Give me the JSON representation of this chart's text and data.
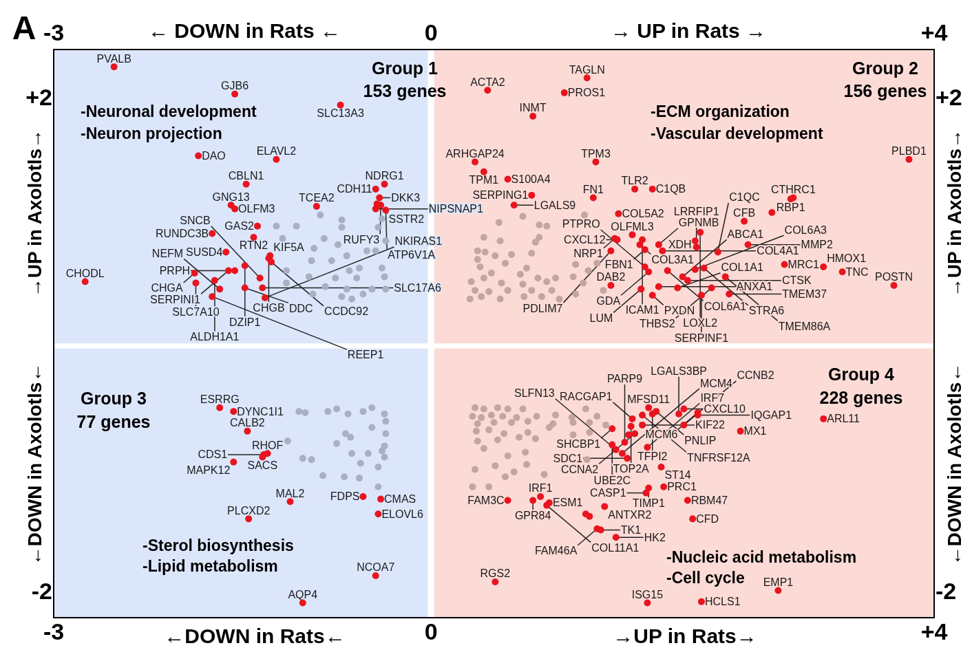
{
  "chart_data": {
    "type": "scatter",
    "xlim": [
      -3,
      4
    ],
    "xticks": [
      -3,
      0,
      {
        "value": 4,
        "label": "+4"
      }
    ],
    "x2lim": [
      -3,
      4
    ],
    "x2ticks": [
      -3,
      0,
      {
        "value": 4,
        "label": "+4"
      }
    ],
    "ylim": [
      -2.2,
      2.4
    ],
    "yticks": [
      -2,
      {
        "value": 2,
        "label": "+2"
      }
    ],
    "y2lim": [
      -2.2,
      2.4
    ],
    "y2ticks": [
      -2,
      {
        "value": 2,
        "label": "+2"
      }
    ],
    "grid": false,
    "legend": false,
    "marker": "circle",
    "bands": [
      {
        "axis": "x",
        "from": -3,
        "to": 0,
        "color": "#dce6fb"
      },
      {
        "axis": "x",
        "from": 0,
        "to": 4,
        "color": "#fcdbd6"
      },
      {
        "axis": "x",
        "from": -0.025,
        "to": 0.025,
        "color": "#ffffff"
      },
      {
        "axis": "y",
        "from": -0.02,
        "to": 0.02,
        "color": "#ffffff"
      }
    ],
    "series": [
      {
        "color": "#a8b0c3",
        "x": [
          -0.88,
          -0.71,
          -0.71,
          -0.85,
          -0.74,
          -0.42,
          -0.39,
          -0.36,
          -0.51,
          -0.44,
          -0.67,
          -0.79,
          -0.95,
          -1.07,
          -1.23,
          -1.18,
          -0.93,
          -1.15,
          -0.97,
          -0.84,
          -0.76,
          -0.65,
          -0.57,
          -0.39,
          -0.37,
          -0.47,
          -0.54,
          -0.63,
          -0.71,
          -0.36,
          -1.15,
          -0.94,
          -0.59,
          -0.67,
          -1.05,
          -1.0,
          -0.82,
          -0.75,
          -0.66,
          -0.54,
          -0.47,
          -0.37,
          -0.36,
          -0.47,
          -0.68,
          -0.64,
          -0.36,
          -1.14,
          -0.75,
          -0.37,
          -0.63,
          -0.5,
          -0.39,
          -0.37,
          -0.56,
          -0.42,
          -1.02,
          -0.95,
          -0.86,
          -0.69,
          -0.57,
          -0.42
        ],
        "values": [
          1.06,
          1.02,
          0.96,
          0.87,
          0.82,
          0.96,
          1.03,
          0.85,
          0.77,
          0.77,
          0.73,
          0.69,
          0.69,
          0.97,
          0.97,
          0.87,
          0.79,
          0.61,
          0.56,
          0.48,
          0.55,
          0.61,
          0.63,
          0.63,
          0.56,
          0.46,
          0.42,
          0.38,
          0.4,
          0.46,
          0.51,
          0.42,
          0.55,
          0.46,
          -0.53,
          -0.54,
          -0.53,
          -0.51,
          -0.55,
          -0.53,
          -0.5,
          -0.55,
          -0.61,
          -0.66,
          -0.71,
          -0.74,
          -0.71,
          -0.77,
          -0.79,
          -0.81,
          -0.87,
          -0.87,
          -0.85,
          -0.9,
          -0.95,
          -0.98,
          -0.91,
          -0.92,
          -1.05,
          -1.06,
          -1.07,
          -1.14
        ]
      },
      {
        "color": "#c4a5a0",
        "x": [
          0.73,
          1.22,
          0.54,
          0.86,
          0.92,
          0.42,
          0.55,
          0.86,
          0.83,
          0.37,
          0.43,
          0.51,
          0.64,
          0.8,
          0.37,
          0.59,
          0.76,
          1.15,
          1.32,
          1.25,
          0.39,
          0.48,
          0.71,
          0.85,
          0.99,
          1.13,
          0.32,
          0.42,
          0.56,
          0.73,
          0.92,
          1.21,
          0.35,
          0.46,
          0.61,
          0.8,
          0.96,
          1.15,
          0.31,
          0.4,
          0.55,
          0.74,
          0.88,
          1.02,
          1.37,
          0.35,
          0.42,
          0.53,
          0.61,
          0.73,
          1.23,
          0.33,
          0.4,
          0.48,
          0.57,
          0.68,
          0.84,
          0.99,
          1.12,
          1.32,
          0.37,
          0.5,
          0.64,
          0.77,
          0.97,
          1.13,
          1.26,
          1.39,
          0.36,
          0.46,
          0.58,
          0.77,
          0.94,
          1.26,
          0.37,
          0.53,
          0.7,
          0.83,
          1.13,
          0.42,
          0.61,
          0.75,
          1.24,
          0.35,
          0.51,
          0.66,
          0.76,
          0.59,
          0.33,
          0.46,
          0.9
        ],
        "values": [
          1.05,
          1.06,
          1.0,
          0.98,
          0.97,
          0.88,
          0.85,
          0.88,
          0.84,
          0.77,
          0.76,
          0.73,
          0.74,
          0.75,
          0.7,
          0.67,
          0.63,
          0.66,
          0.67,
          0.61,
          0.64,
          0.59,
          0.58,
          0.55,
          0.55,
          0.56,
          0.52,
          0.55,
          0.51,
          0.5,
          0.52,
          0.51,
          0.45,
          0.44,
          0.45,
          0.45,
          0.45,
          0.42,
          0.38,
          0.4,
          0.38,
          0.4,
          0.4,
          0.38,
          0.45,
          -0.5,
          -0.51,
          -0.5,
          -0.51,
          -0.51,
          -0.51,
          -0.57,
          -0.58,
          -0.56,
          -0.57,
          -0.58,
          -0.57,
          -0.56,
          -0.58,
          -0.57,
          -0.63,
          -0.62,
          -0.62,
          -0.61,
          -0.63,
          -0.62,
          -0.62,
          -0.64,
          -0.69,
          -0.68,
          -0.71,
          -0.7,
          -0.66,
          -0.7,
          -0.77,
          -0.76,
          -0.74,
          -0.75,
          -0.72,
          -0.83,
          -0.89,
          -0.86,
          -0.92,
          -1.0,
          -0.97,
          -1.02,
          -0.96,
          -1.06,
          -1.14,
          -1.14,
          -1.04
        ]
      },
      {
        "color": "#e8141f",
        "x": [
          -2.52,
          -1.56,
          -0.72,
          -1.85,
          -1.23,
          -1.47,
          -1.59,
          -1.56,
          -1.41,
          -0.91,
          -0.44,
          -0.37,
          -0.41,
          -0.43,
          -0.44,
          -0.4,
          -0.36,
          -1.38,
          -1.74,
          -1.63,
          -1.61,
          -1.28,
          -1.29,
          -1.27,
          -1.48,
          -1.56,
          -1.88,
          -1.72,
          -1.87,
          -2.75,
          -1.68,
          -1.74,
          -1.48,
          -1.36,
          -1.34,
          -1.32,
          1.24,
          0.45,
          1.06,
          0.81,
          0.35,
          1.31,
          0.42,
          0.61,
          0.8,
          0.66,
          1.29,
          1.49,
          1.62,
          1.76,
          1.6,
          1.66,
          1.48,
          1.46,
          1.68,
          1.81,
          1.7,
          1.84,
          1.7,
          1.43,
          1.73,
          1.67,
          1.43,
          1.76,
          1.88,
          1.81,
          2.0,
          2.04,
          1.96,
          3.8,
          2.14,
          2.1,
          2.88,
          2.86,
          2.49,
          2.71,
          2.52,
          2.11,
          2.28,
          2.17,
          2.1,
          2.34,
          2.23,
          2.37,
          2.15,
          2.81,
          3.12,
          3.27,
          3.68,
          -1.68,
          -1.57,
          -1.46,
          -1.34,
          -1.3,
          -1.33,
          -1.57,
          -1.12,
          -1.45,
          -0.54,
          -0.4,
          -0.42,
          -0.44,
          -1.02,
          1.73,
          1.79,
          1.76,
          1.6,
          1.68,
          1.68,
          1.59,
          1.44,
          1.62,
          1.57,
          1.44,
          1.54,
          1.72,
          1.52,
          1.47,
          1.56,
          1.83,
          1.85,
          1.73,
          1.71,
          0.87,
          0.81,
          0.61,
          0.94,
          0.92,
          1.38,
          1.23,
          1.26,
          1.32,
          1.35,
          1.47,
          0.51,
          1.72,
          2.01,
          1.97,
          2.12,
          2.12,
          2.01,
          2.46,
          3.12,
          2.04,
          2.08,
          2.76,
          2.15
        ],
        "values": [
          2.26,
          2.04,
          1.95,
          1.54,
          1.51,
          1.31,
          1.14,
          1.11,
          0.88,
          1.13,
          1.27,
          1.31,
          1.2,
          1.15,
          1.11,
          1.14,
          1.1,
          0.97,
          0.91,
          0.76,
          0.61,
          0.73,
          0.71,
          0.68,
          0.65,
          0.61,
          0.59,
          0.53,
          0.51,
          0.52,
          0.46,
          0.4,
          0.47,
          0.55,
          0.47,
          0.39,
          2.17,
          2.07,
          2.05,
          1.86,
          1.49,
          1.49,
          1.41,
          1.35,
          1.22,
          1.14,
          1.2,
          1.07,
          1.27,
          1.27,
          0.9,
          0.82,
          0.86,
          0.87,
          0.86,
          0.82,
          0.78,
          0.77,
          0.64,
          0.77,
          0.6,
          0.46,
          0.49,
          0.41,
          0.61,
          0.48,
          0.56,
          0.53,
          0.47,
          1.51,
          0.92,
          0.85,
          1.2,
          1.19,
          1.01,
          1.08,
          0.82,
          0.8,
          0.76,
          0.63,
          0.62,
          0.56,
          0.47,
          0.42,
          0.41,
          0.66,
          0.64,
          0.6,
          0.49,
          -0.5,
          -0.53,
          -0.69,
          -0.9,
          -0.87,
          -0.88,
          -0.94,
          -1.26,
          -1.4,
          -1.22,
          -1.24,
          -1.36,
          -1.86,
          -2.08,
          -0.5,
          -0.53,
          -0.55,
          -0.59,
          -0.56,
          -0.64,
          -0.65,
          -0.67,
          -0.71,
          -0.72,
          -0.8,
          -0.78,
          -0.82,
          -0.87,
          -0.84,
          -0.91,
          -0.98,
          -1.14,
          -1.15,
          -1.19,
          -1.22,
          -1.25,
          -1.25,
          -1.27,
          -1.29,
          -1.3,
          -1.36,
          -1.38,
          -1.48,
          -1.49,
          -1.55,
          -1.91,
          -2.08,
          -0.51,
          -0.55,
          -0.54,
          -0.56,
          -0.64,
          -0.69,
          -0.59,
          -1.25,
          -1.4,
          -1.98,
          -2.07
        ]
      }
    ],
    "annotations": [
      "A",
      "← DOWN in Rats ←",
      "→ UP in Rats →",
      "←DOWN in Rats←",
      "→UP in Rats→",
      "→UP in Axolotls→",
      "←DOWN in Axolotls←",
      "→UP in Axolotls→",
      "←DOWN in Axolotls←",
      "Group 1",
      "153 genes",
      "-Neuronal development",
      "-Neuron projection",
      "Group 2",
      "156 genes",
      "-ECM organization",
      "-Vascular development",
      "Group 3",
      "77 genes",
      "-Sterol biosynthesis",
      "-Lipid metabolism",
      "Group 4",
      "228 genes",
      "-Nucleic acid metabolism",
      "-Cell cycle",
      {
        "text": "PVALB",
        "x": -2.52,
        "y": 2.26
      },
      {
        "text": "GJB6",
        "x": -1.56,
        "y": 2.04
      },
      {
        "text": "SLC13A3",
        "x": -0.72,
        "y": 1.95
      },
      {
        "text": "DAO",
        "x": -1.85,
        "y": 1.54
      },
      {
        "text": "ELAVL2",
        "x": -1.23,
        "y": 1.51
      },
      {
        "text": "CBLN1",
        "x": -1.47,
        "y": 1.31
      },
      {
        "text": "GNG13",
        "x": -1.59,
        "y": 1.14
      },
      {
        "text": "OLFM3",
        "x": -1.56,
        "y": 1.11
      },
      {
        "text": "RTN2",
        "x": -1.41,
        "y": 0.88
      },
      {
        "text": "TCEA2",
        "x": -0.91,
        "y": 1.13
      },
      {
        "text": "CDH11",
        "x": -0.44,
        "y": 1.27
      },
      {
        "text": "NDRG1",
        "x": -0.37,
        "y": 1.31
      },
      {
        "text": "DKK3",
        "x": -0.41,
        "y": 1.2
      },
      {
        "text": "SSTR2",
        "x": -0.43,
        "y": 1.15
      },
      {
        "text": "NIPSNAP1",
        "x": -0.44,
        "y": 1.11
      },
      {
        "text": "RUFY3",
        "x": -0.4,
        "y": 1.14
      },
      {
        "text": "ATP6V1A",
        "x": -0.36,
        "y": 1.1
      },
      {
        "text": "GAS2",
        "x": -1.38,
        "y": 0.97
      },
      {
        "text": "RUNDC3B",
        "x": -1.74,
        "y": 0.91
      },
      {
        "text": "SUSD4",
        "x": -1.63,
        "y": 0.76
      },
      {
        "text": "SERPINI1",
        "x": -1.61,
        "y": 0.61
      },
      {
        "text": "KIF5A",
        "x": -1.28,
        "y": 0.73
      },
      {
        "text": "CHGB",
        "x": -1.29,
        "y": 0.71
      },
      {
        "text": "CCDC92",
        "x": -1.27,
        "y": 0.68
      },
      {
        "text": "DZIP1",
        "x": -1.48,
        "y": 0.65
      },
      {
        "text": "PRPH",
        "x": -1.56,
        "y": 0.61
      },
      {
        "text": "CHGA",
        "x": -1.88,
        "y": 0.59
      },
      {
        "text": "ALDH1A1",
        "x": -1.72,
        "y": 0.53
      },
      {
        "text": "SLC7A10",
        "x": -1.87,
        "y": 0.51
      },
      {
        "text": "CHODL",
        "x": -2.75,
        "y": 0.52
      },
      {
        "text": "NEFM",
        "x": -1.68,
        "y": 0.46
      },
      {
        "text": "REEP1",
        "x": -1.74,
        "y": 0.4
      },
      {
        "text": "DDC",
        "x": -1.48,
        "y": 0.47
      },
      {
        "text": "SNCB",
        "x": -1.36,
        "y": 0.55
      },
      {
        "text": "SLC17A6",
        "x": -1.34,
        "y": 0.47
      },
      {
        "text": "NKIRAS1",
        "x": -1.32,
        "y": 0.39
      },
      {
        "text": "TAGLN",
        "x": 1.24,
        "y": 2.17
      },
      {
        "text": "ACTA2",
        "x": 0.45,
        "y": 2.07
      },
      {
        "text": "PROS1",
        "x": 1.06,
        "y": 2.05
      },
      {
        "text": "INMT",
        "x": 0.81,
        "y": 1.86
      },
      {
        "text": "ARHGAP24",
        "x": 0.35,
        "y": 1.49
      },
      {
        "text": "TPM3",
        "x": 1.31,
        "y": 1.49
      },
      {
        "text": "TPM1",
        "x": 0.42,
        "y": 1.41
      },
      {
        "text": "S100A4",
        "x": 0.61,
        "y": 1.35
      },
      {
        "text": "SERPING1",
        "x": 0.8,
        "y": 1.22
      },
      {
        "text": "LGALS9",
        "x": 0.66,
        "y": 1.14
      },
      {
        "text": "FN1",
        "x": 1.29,
        "y": 1.2
      },
      {
        "text": "COL5A2",
        "x": 1.49,
        "y": 1.07
      },
      {
        "text": "TLR2",
        "x": 1.62,
        "y": 1.27
      },
      {
        "text": "C1QB",
        "x": 1.76,
        "y": 1.27
      },
      {
        "text": "OLFML3",
        "x": 1.6,
        "y": 0.9
      },
      {
        "text": "COL3A1",
        "x": 1.66,
        "y": 0.82
      },
      {
        "text": "CXCL12",
        "x": 1.48,
        "y": 0.86
      },
      {
        "text": "NRP1",
        "x": 1.46,
        "y": 0.87
      },
      {
        "text": "ICAM1",
        "x": 1.68,
        "y": 0.86
      },
      {
        "text": "GPNMB",
        "x": 1.81,
        "y": 0.82
      },
      {
        "text": "FBN1",
        "x": 1.7,
        "y": 0.78
      },
      {
        "text": "COL4A1",
        "x": 1.84,
        "y": 0.77
      },
      {
        "text": "PTPRO",
        "x": 1.7,
        "y": 0.64
      },
      {
        "text": "PDLIM7",
        "x": 1.43,
        "y": 0.77
      },
      {
        "text": "GDA",
        "x": 1.73,
        "y": 0.6
      },
      {
        "text": "LUM",
        "x": 1.67,
        "y": 0.46
      },
      {
        "text": "DAB2",
        "x": 1.43,
        "y": 0.49
      },
      {
        "text": "PXDN",
        "x": 1.76,
        "y": 0.41
      },
      {
        "text": "COL6A1",
        "x": 1.88,
        "y": 0.61
      },
      {
        "text": "ANXA1",
        "x": 1.81,
        "y": 0.48
      },
      {
        "text": "ABCA1",
        "x": 2.0,
        "y": 0.56
      },
      {
        "text": "CTSK",
        "x": 2.04,
        "y": 0.53
      },
      {
        "text": "COL1A1",
        "x": 1.96,
        "y": 0.47
      },
      {
        "text": "PLBD1",
        "x": 3.8,
        "y": 1.51
      },
      {
        "text": "LOXL2",
        "x": 2.14,
        "y": 0.92
      },
      {
        "text": "XDH",
        "x": 2.1,
        "y": 0.85
      },
      {
        "text": "CTHRC1",
        "x": 2.88,
        "y": 1.2
      },
      {
        "text": "RBP1",
        "x": 2.86,
        "y": 1.19
      },
      {
        "text": "CFB",
        "x": 2.49,
        "y": 1.01
      },
      {
        "text": "MMP2",
        "x": 2.52,
        "y": 0.82
      },
      {
        "text": "LRRFIP1",
        "x": 2.11,
        "y": 0.8
      },
      {
        "text": "C1QC",
        "x": 2.28,
        "y": 0.76
      },
      {
        "text": "STRA6",
        "x": 2.17,
        "y": 0.63
      },
      {
        "text": "COL6A3",
        "x": 2.1,
        "y": 0.62
      },
      {
        "text": "TMEM86A",
        "x": 2.34,
        "y": 0.56
      },
      {
        "text": "THBS2",
        "x": 2.23,
        "y": 0.47
      },
      {
        "text": "TMEM37",
        "x": 2.37,
        "y": 0.42
      },
      {
        "text": "SERPINF1",
        "x": 2.15,
        "y": 0.41
      },
      {
        "text": "MRC1",
        "x": 2.81,
        "y": 0.66
      },
      {
        "text": "HMOX1",
        "x": 3.12,
        "y": 0.64
      },
      {
        "text": "TNC",
        "x": 3.27,
        "y": 0.6
      },
      {
        "text": "POSTN",
        "x": 3.68,
        "y": 0.49
      },
      {
        "text": "ESRRG",
        "x": -1.68,
        "y": -0.5
      },
      {
        "text": "DYNC1I1",
        "x": -1.57,
        "y": -0.53
      },
      {
        "text": "CALB2",
        "x": -1.46,
        "y": -0.69
      },
      {
        "text": "SACS",
        "x": -1.34,
        "y": -0.9
      },
      {
        "text": "RHOF",
        "x": -1.3,
        "y": -0.87
      },
      {
        "text": "CDS1",
        "x": -1.33,
        "y": -0.88
      },
      {
        "text": "MAPK12",
        "x": -1.57,
        "y": -0.94
      },
      {
        "text": "MAL2",
        "x": -1.12,
        "y": -1.26
      },
      {
        "text": "PLCXD2",
        "x": -1.45,
        "y": -1.4
      },
      {
        "text": "FDPS",
        "x": -0.54,
        "y": -1.22
      },
      {
        "text": "CMAS",
        "x": -0.4,
        "y": -1.24
      },
      {
        "text": "ELOVL6",
        "x": -0.42,
        "y": -1.36
      },
      {
        "text": "NCOA7",
        "x": -0.44,
        "y": -1.86
      },
      {
        "text": "AQP4",
        "x": -1.02,
        "y": -2.08
      },
      {
        "text": "MFSD11",
        "x": 1.73,
        "y": -0.5
      },
      {
        "text": "PNLIP",
        "x": 1.79,
        "y": -0.53
      },
      {
        "text": "TFPI2",
        "x": 1.76,
        "y": -0.55
      },
      {
        "text": "RACGAP1",
        "x": 1.6,
        "y": -0.59
      },
      {
        "text": "TNFRSF12A",
        "x": 1.68,
        "y": -0.56
      },
      {
        "text": "KIF22",
        "x": 1.68,
        "y": -0.64
      },
      {
        "text": "TOP2A",
        "x": 1.59,
        "y": -0.65
      },
      {
        "text": "SHCBP1",
        "x": 1.44,
        "y": -0.67
      },
      {
        "text": "CCNA2",
        "x": 1.62,
        "y": -0.71
      },
      {
        "text": "UBE2C",
        "x": 1.44,
        "y": -0.8
      },
      {
        "text": "PARP9",
        "x": 1.54,
        "y": -0.78
      },
      {
        "text": "IRF7",
        "x": 1.72,
        "y": -0.82
      },
      {
        "text": "MCM4",
        "x": 1.52,
        "y": -0.87
      },
      {
        "text": "SLFN13",
        "x": 1.47,
        "y": -0.84
      },
      {
        "text": "SDC1",
        "x": 1.56,
        "y": -0.91
      },
      {
        "text": "ST14",
        "x": 1.83,
        "y": -0.98
      },
      {
        "text": "PRC1",
        "x": 1.85,
        "y": -1.14
      },
      {
        "text": "TIMP1",
        "x": 1.73,
        "y": -1.15
      },
      {
        "text": "CASP1",
        "x": 1.71,
        "y": -1.19
      },
      {
        "text": "IRF1",
        "x": 0.87,
        "y": -1.22
      },
      {
        "text": "GPR84",
        "x": 0.81,
        "y": -1.25
      },
      {
        "text": "FAM3C",
        "x": 0.61,
        "y": -1.25
      },
      {
        "text": "ESM1",
        "x": 0.94,
        "y": -1.27
      },
      {
        "text": "COL11A1",
        "x": 0.92,
        "y": -1.29
      },
      {
        "text": "ANTXR2",
        "x": 1.38,
        "y": -1.3
      },
      {
        "text": "FAM46A",
        "x": 1.32,
        "y": -1.48
      },
      {
        "text": "TK1",
        "x": 1.35,
        "y": -1.49
      },
      {
        "text": "HK2",
        "x": 1.47,
        "y": -1.55
      },
      {
        "text": "RGS2",
        "x": 0.51,
        "y": -1.91
      },
      {
        "text": "ISG15",
        "x": 1.72,
        "y": -2.08
      },
      {
        "text": "CXCL10",
        "x": 2.01,
        "y": -0.51
      },
      {
        "text": "LGALS3BP",
        "x": 1.97,
        "y": -0.55
      },
      {
        "text": "MCM6",
        "x": 2.12,
        "y": -0.54
      },
      {
        "text": "IQGAP1",
        "x": 2.12,
        "y": -0.56
      },
      {
        "text": "CCNB2",
        "x": 2.01,
        "y": -0.64
      },
      {
        "text": "MX1",
        "x": 2.46,
        "y": -0.69
      },
      {
        "text": "ARL11",
        "x": 3.12,
        "y": -0.59
      },
      {
        "text": "RBM47",
        "x": 2.04,
        "y": -1.25
      },
      {
        "text": "CFD",
        "x": 2.08,
        "y": -1.4
      },
      {
        "text": "EMP1",
        "x": 2.76,
        "y": -1.98
      },
      {
        "text": "HCLS1",
        "x": 2.15,
        "y": -2.07
      }
    ]
  }
}
